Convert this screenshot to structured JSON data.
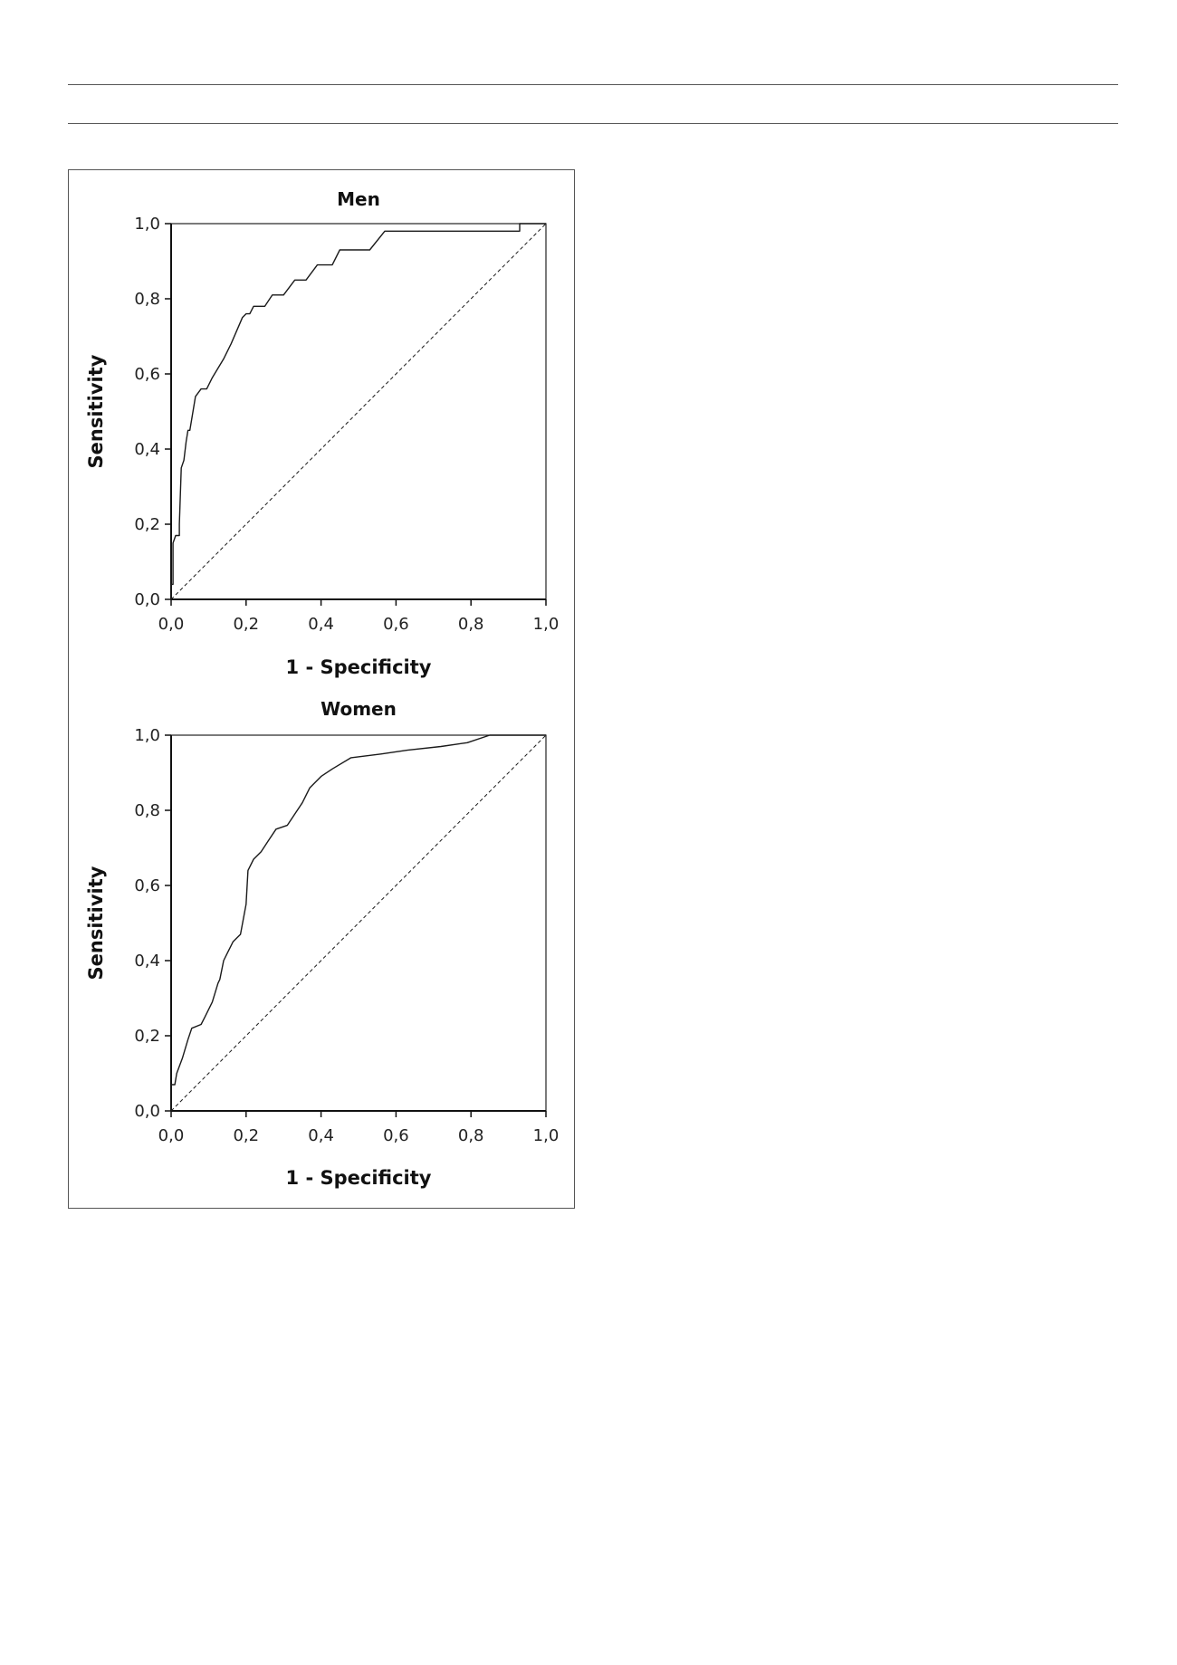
{
  "chart_data": [
    {
      "type": "line",
      "title": "Men",
      "xlabel": "1 - Specificity",
      "ylabel": "Sensitivity",
      "xlim": [
        0,
        1
      ],
      "ylim": [
        0,
        1
      ],
      "x_ticks": [
        "0,0",
        "0,2",
        "0,4",
        "0,6",
        "0,8",
        "1,0"
      ],
      "y_ticks": [
        "0,0",
        "0,2",
        "0,4",
        "0,6",
        "0,8",
        "1,0"
      ],
      "grid": false,
      "series": [
        {
          "style": "solid",
          "points": [
            [
              0,
              0
            ],
            [
              0,
              0.04
            ],
            [
              0.005,
              0.04
            ],
            [
              0.005,
              0.15
            ],
            [
              0.012,
              0.17
            ],
            [
              0.022,
              0.17
            ],
            [
              0.022,
              0.2
            ],
            [
              0.027,
              0.35
            ],
            [
              0.034,
              0.37
            ],
            [
              0.04,
              0.42
            ],
            [
              0.045,
              0.45
            ],
            [
              0.05,
              0.45
            ],
            [
              0.065,
              0.54
            ],
            [
              0.08,
              0.56
            ],
            [
              0.095,
              0.56
            ],
            [
              0.11,
              0.59
            ],
            [
              0.14,
              0.64
            ],
            [
              0.16,
              0.68
            ],
            [
              0.19,
              0.75
            ],
            [
              0.2,
              0.76
            ],
            [
              0.21,
              0.76
            ],
            [
              0.22,
              0.78
            ],
            [
              0.25,
              0.78
            ],
            [
              0.27,
              0.81
            ],
            [
              0.3,
              0.81
            ],
            [
              0.33,
              0.85
            ],
            [
              0.36,
              0.85
            ],
            [
              0.39,
              0.89
            ],
            [
              0.43,
              0.89
            ],
            [
              0.45,
              0.93
            ],
            [
              0.53,
              0.93
            ],
            [
              0.57,
              0.98
            ],
            [
              0.93,
              0.98
            ],
            [
              0.93,
              1.0
            ],
            [
              1.0,
              1.0
            ]
          ]
        },
        {
          "style": "dashed",
          "points": [
            [
              0,
              0
            ],
            [
              1,
              1
            ]
          ]
        }
      ]
    },
    {
      "type": "line",
      "title": "Women",
      "xlabel": "1 - Specificity",
      "ylabel": "Sensitivity",
      "xlim": [
        0,
        1
      ],
      "ylim": [
        0,
        1
      ],
      "x_ticks": [
        "0,0",
        "0,2",
        "0,4",
        "0,6",
        "0,8",
        "1,0"
      ],
      "y_ticks": [
        "0,0",
        "0,2",
        "0,4",
        "0,6",
        "0,8",
        "1,0"
      ],
      "grid": false,
      "series": [
        {
          "style": "solid",
          "points": [
            [
              0,
              0
            ],
            [
              0,
              0.07
            ],
            [
              0.01,
              0.07
            ],
            [
              0.015,
              0.1
            ],
            [
              0.03,
              0.14
            ],
            [
              0.045,
              0.19
            ],
            [
              0.055,
              0.22
            ],
            [
              0.08,
              0.23
            ],
            [
              0.09,
              0.25
            ],
            [
              0.11,
              0.29
            ],
            [
              0.125,
              0.34
            ],
            [
              0.13,
              0.35
            ],
            [
              0.14,
              0.4
            ],
            [
              0.15,
              0.42
            ],
            [
              0.165,
              0.45
            ],
            [
              0.175,
              0.46
            ],
            [
              0.185,
              0.47
            ],
            [
              0.2,
              0.55
            ],
            [
              0.205,
              0.64
            ],
            [
              0.22,
              0.67
            ],
            [
              0.24,
              0.69
            ],
            [
              0.26,
              0.72
            ],
            [
              0.28,
              0.75
            ],
            [
              0.31,
              0.76
            ],
            [
              0.33,
              0.79
            ],
            [
              0.35,
              0.82
            ],
            [
              0.37,
              0.86
            ],
            [
              0.4,
              0.89
            ],
            [
              0.43,
              0.91
            ],
            [
              0.48,
              0.94
            ],
            [
              0.56,
              0.95
            ],
            [
              0.63,
              0.96
            ],
            [
              0.72,
              0.97
            ],
            [
              0.79,
              0.98
            ],
            [
              0.85,
              1.0
            ],
            [
              1.0,
              1.0
            ]
          ]
        },
        {
          "style": "dashed",
          "points": [
            [
              0,
              0
            ],
            [
              1,
              1
            ]
          ]
        }
      ]
    }
  ]
}
